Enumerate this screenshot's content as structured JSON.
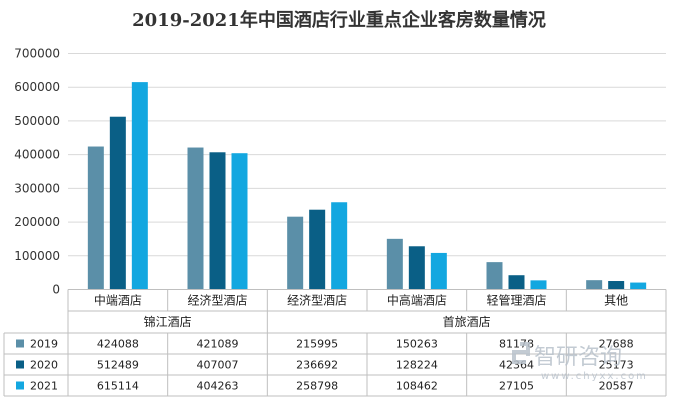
{
  "chart_data": {
    "type": "bar",
    "title": "2019-2021年中国酒店行业重点企业客房数量情况",
    "ylim": [
      0,
      700000
    ],
    "yticks": [
      "700000",
      "600000",
      "500000",
      "400000",
      "300000",
      "200000",
      "100000",
      "0"
    ],
    "ytick_values": [
      700000,
      600000,
      500000,
      400000,
      300000,
      200000,
      100000,
      0
    ],
    "grid": true,
    "legend": "table-left",
    "categories": [
      "中端酒店",
      "经济型酒店",
      "经济型酒店",
      "中高端酒店",
      "轻管理酒店",
      "其他"
    ],
    "groups": [
      {
        "label": "锦江酒店",
        "span": [
          0,
          1
        ]
      },
      {
        "label": "首旅酒店",
        "span": [
          2,
          5
        ]
      }
    ],
    "series": [
      {
        "name": "2019",
        "color": "#5b8fa8",
        "values": [
          424088,
          421089,
          215995,
          150263,
          81178,
          27688
        ]
      },
      {
        "name": "2020",
        "color": "#0a5f86",
        "values": [
          512489,
          407007,
          236692,
          128224,
          42364,
          25173
        ]
      },
      {
        "name": "2021",
        "color": "#13a7e0",
        "values": [
          615114,
          404263,
          258798,
          108462,
          27105,
          20587
        ]
      }
    ]
  },
  "watermark": {
    "text": "智研咨询",
    "url": "www.chyxx.com"
  }
}
